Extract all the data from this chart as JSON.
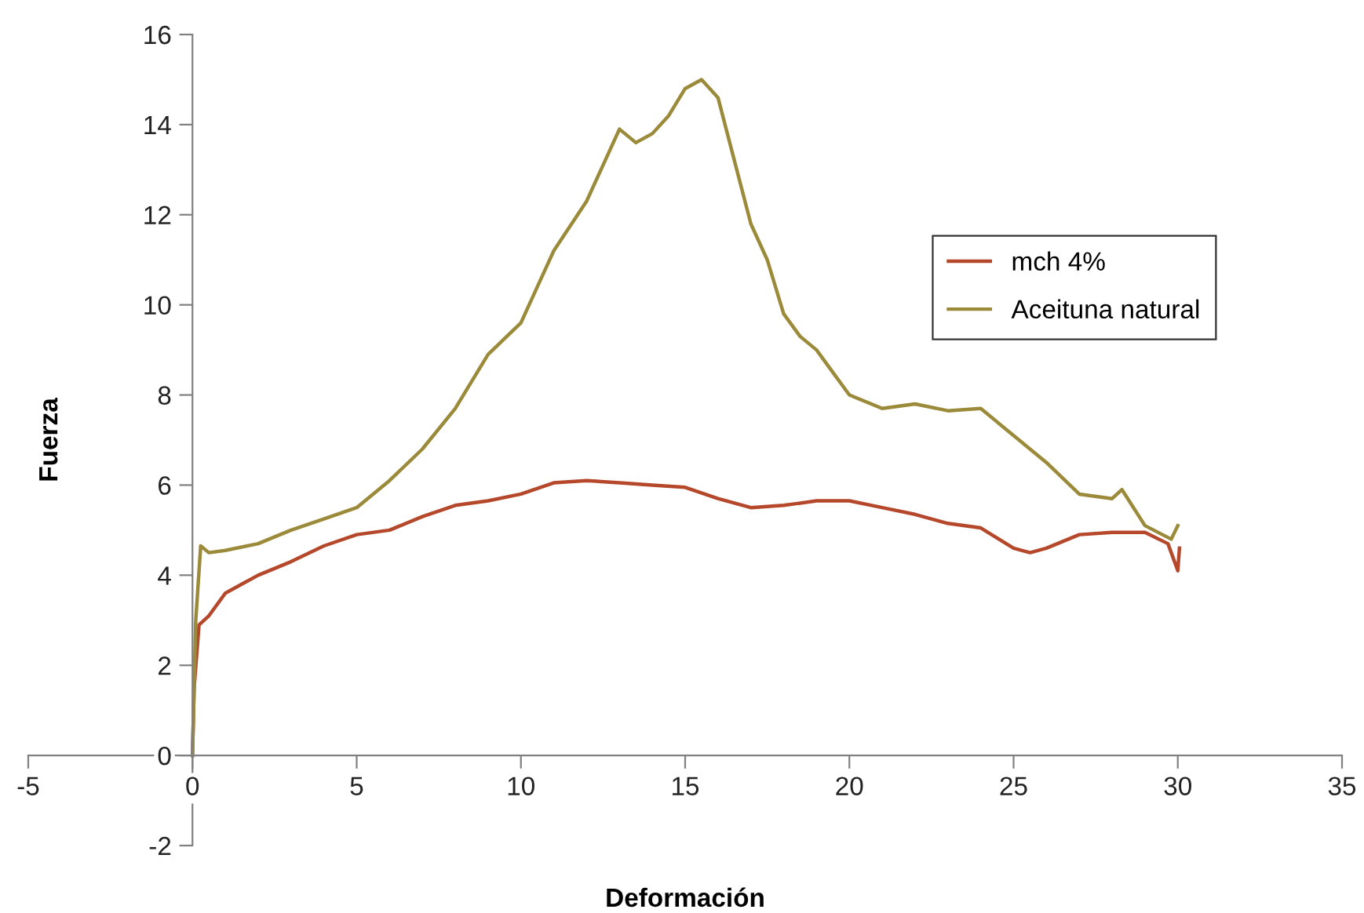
{
  "chart_data": {
    "type": "line",
    "xlabel": "Deformación",
    "ylabel": "Fuerza",
    "xlim": [
      -5,
      35
    ],
    "ylim": [
      -2,
      16
    ],
    "xticks": [
      -5,
      0,
      5,
      10,
      15,
      20,
      25,
      30,
      35
    ],
    "yticks": [
      -2,
      0,
      2,
      4,
      6,
      8,
      10,
      12,
      14,
      16
    ],
    "grid": false,
    "legend": "right",
    "marker": "none",
    "line_style": "solid",
    "series": [
      {
        "name": "mch 4%",
        "color": "#b5472b",
        "x": [
          0,
          0.05,
          0.2,
          0.5,
          1,
          1.5,
          2,
          3,
          4,
          5,
          6,
          7,
          8,
          9,
          10,
          11,
          12,
          13,
          14,
          15,
          16,
          17,
          18,
          19,
          20,
          21,
          22,
          23,
          24,
          25,
          25.5,
          26,
          27,
          28,
          29,
          29.7,
          30,
          30.05
        ],
        "values": [
          0,
          1.5,
          2.9,
          3.1,
          3.6,
          3.8,
          4.0,
          4.3,
          4.65,
          4.9,
          5.0,
          5.3,
          5.55,
          5.65,
          5.8,
          6.05,
          6.1,
          6.05,
          6.0,
          5.95,
          5.7,
          5.5,
          5.55,
          5.65,
          5.65,
          5.5,
          5.35,
          5.15,
          5.05,
          4.6,
          4.5,
          4.6,
          4.9,
          4.95,
          4.95,
          4.7,
          4.1,
          4.6
        ]
      },
      {
        "name": "Aceituna natural",
        "color": "#9a8a3a",
        "x": [
          0,
          0.1,
          0.25,
          0.5,
          1,
          2,
          3,
          4,
          5,
          6,
          7,
          8,
          9,
          10,
          10.5,
          11,
          12,
          12.5,
          13,
          13.5,
          14,
          14.5,
          15,
          15.5,
          16,
          16.5,
          17,
          17.5,
          18,
          18.5,
          19,
          19.5,
          20,
          21,
          22,
          23,
          24,
          25,
          26,
          27,
          28,
          28.3,
          29,
          29.8,
          30
        ],
        "values": [
          0,
          3.0,
          4.65,
          4.5,
          4.55,
          4.7,
          5.0,
          5.25,
          5.5,
          6.1,
          6.8,
          7.7,
          8.9,
          9.6,
          10.4,
          11.2,
          12.3,
          13.1,
          13.9,
          13.6,
          13.8,
          14.2,
          14.8,
          15.0,
          14.6,
          13.2,
          11.8,
          11.0,
          9.8,
          9.3,
          9.0,
          8.5,
          8.0,
          7.7,
          7.8,
          7.65,
          7.7,
          7.1,
          6.5,
          5.8,
          5.7,
          5.9,
          5.1,
          4.8,
          5.1
        ]
      }
    ]
  }
}
